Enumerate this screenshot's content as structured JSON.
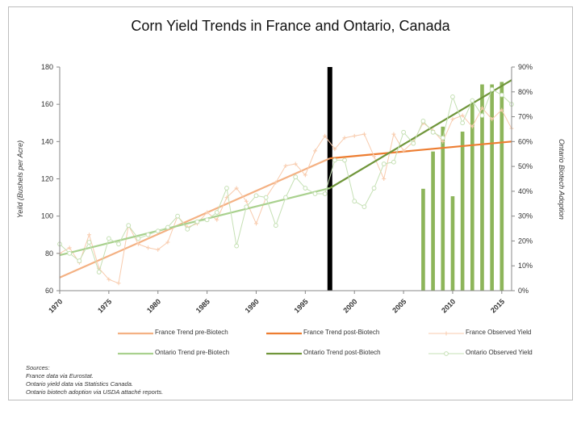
{
  "chart_data": {
    "type": "line",
    "title": "Corn Yield Trends in France and Ontario, Canada",
    "xlabel": "",
    "ylabel": "Yeild (Bushels per Acre)",
    "y2label": "Ontario Biotech Adoption",
    "xlim": [
      1970,
      2016
    ],
    "ylim": [
      60,
      180
    ],
    "y2lim": [
      0,
      90
    ],
    "x_ticks": [
      "1970",
      "1975",
      "1980",
      "1985",
      "1990",
      "1995",
      "2000",
      "2005",
      "2010",
      "2015"
    ],
    "y_ticks": [
      "60",
      "80",
      "100",
      "120",
      "140",
      "160",
      "180"
    ],
    "y2_ticks": [
      "0%",
      "10%",
      "20%",
      "30%",
      "40%",
      "50%",
      "60%",
      "70%",
      "80%",
      "90%"
    ],
    "grid": false,
    "legend_position": "bottom",
    "biotech_introduction_year": 1997.5,
    "series": [
      {
        "name": "France Trend pre-Biotech",
        "kind": "line",
        "color": "#f4b183",
        "x": [
          1970,
          1997.5
        ],
        "y": [
          67,
          131
        ]
      },
      {
        "name": "France Trend post-Biotech",
        "kind": "line",
        "color": "#ed7d31",
        "x": [
          1997.5,
          2016
        ],
        "y": [
          131,
          140
        ]
      },
      {
        "name": "France Observed Yield",
        "kind": "star",
        "color": "#f8cbad",
        "x": [
          1970,
          1971,
          1972,
          1973,
          1974,
          1975,
          1976,
          1977,
          1978,
          1979,
          1980,
          1981,
          1982,
          1983,
          1984,
          1985,
          1986,
          1987,
          1988,
          1989,
          1990,
          1991,
          1992,
          1993,
          1994,
          1995,
          1996,
          1997,
          1998,
          1999,
          2000,
          2001,
          2002,
          2003,
          2004,
          2005,
          2006,
          2007,
          2008,
          2009,
          2010,
          2011,
          2012,
          2013,
          2014,
          2015,
          2016
        ],
        "y": [
          80,
          83,
          75,
          90,
          72,
          66,
          64,
          95,
          85,
          83,
          82,
          86,
          100,
          94,
          96,
          102,
          98,
          110,
          115,
          108,
          96,
          110,
          118,
          127,
          128,
          122,
          135,
          143,
          136,
          142,
          143,
          144,
          132,
          120,
          144,
          135,
          140,
          150,
          146,
          140,
          152,
          154,
          148,
          158,
          152,
          157,
          147
        ]
      },
      {
        "name": "Ontario Trend pre-Biotech",
        "kind": "line",
        "color": "#a9d18e",
        "x": [
          1970,
          1997.5
        ],
        "y": [
          79,
          115
        ]
      },
      {
        "name": "Ontario Trend post-Biotech",
        "kind": "line",
        "color": "#70963b",
        "x": [
          1997.5,
          2016
        ],
        "y": [
          115,
          173
        ]
      },
      {
        "name": "Ontario Observed Yield",
        "kind": "circle",
        "color": "#c5e0b4",
        "x": [
          1970,
          1971,
          1972,
          1973,
          1974,
          1975,
          1976,
          1977,
          1978,
          1979,
          1980,
          1981,
          1982,
          1983,
          1984,
          1985,
          1986,
          1987,
          1988,
          1989,
          1990,
          1991,
          1992,
          1993,
          1994,
          1995,
          1996,
          1997,
          1998,
          1999,
          2000,
          2001,
          2002,
          2003,
          2004,
          2005,
          2006,
          2007,
          2008,
          2009,
          2010,
          2011,
          2012,
          2013,
          2014,
          2015,
          2016
        ],
        "y": [
          85,
          80,
          76,
          86,
          70,
          88,
          85,
          95,
          88,
          90,
          92,
          94,
          100,
          93,
          97,
          98,
          102,
          115,
          84,
          105,
          111,
          110,
          95,
          110,
          121,
          115,
          112,
          112,
          130,
          130,
          108,
          105,
          115,
          128,
          129,
          145,
          139,
          151,
          145,
          142,
          164,
          150,
          162,
          154,
          168,
          165,
          160
        ]
      }
    ],
    "bars": {
      "name": "Ontario Biotech Adoption",
      "color": "#8db55a",
      "x": [
        2007,
        2008,
        2009,
        2010,
        2011,
        2012,
        2013,
        2014,
        2015
      ],
      "values": [
        41,
        56,
        66,
        38,
        64,
        75,
        83,
        83,
        84
      ]
    },
    "biotech_marker_color": "#000000"
  },
  "sources": {
    "heading": "Sources:",
    "lines": [
      "France data via Eurostat.",
      "Ontario yield data via Statistics Canada.",
      "Ontario biotech adoption via USDA attaché reports."
    ]
  }
}
